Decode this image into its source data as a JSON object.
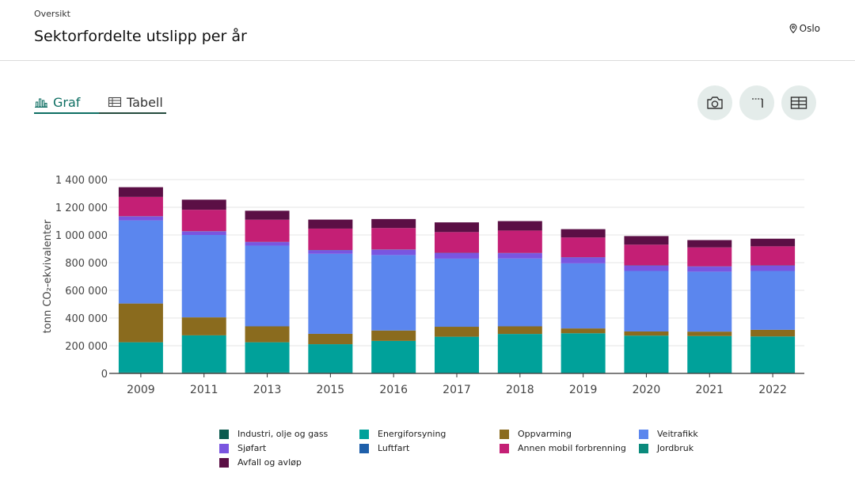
{
  "header": {
    "breadcrumb": "Oversikt",
    "title": "Sektorfordelte utslipp per år",
    "location": "Oslo"
  },
  "tabs": [
    {
      "label": "Graf",
      "icon": "bar-chart-icon",
      "active": true
    },
    {
      "label": "Tabell",
      "icon": "table-icon",
      "active": false
    }
  ],
  "toolbar": [
    {
      "name": "download-image-button",
      "icon": "camera-icon"
    },
    {
      "name": "toggle-axis-button",
      "icon": "axis-icon"
    },
    {
      "name": "show-table-button",
      "icon": "grid-icon"
    }
  ],
  "chart_data": {
    "type": "bar",
    "stacked": true,
    "categories": [
      "2009",
      "2011",
      "2013",
      "2015",
      "2016",
      "2017",
      "2018",
      "2019",
      "2020",
      "2021",
      "2022"
    ],
    "ylabel": "tonn CO₂-ekvivalenter",
    "ylim": [
      0,
      1400000
    ],
    "yticks": [
      0,
      200000,
      400000,
      600000,
      800000,
      1000000,
      1200000,
      1400000
    ],
    "ytick_labels": [
      "0",
      "200 000",
      "400 000",
      "600 000",
      "800 000",
      "1 000 000",
      "1 200 000",
      "1 400 000"
    ],
    "grid": true,
    "legend_position": "bottom",
    "series": [
      {
        "name": "Industri, olje og gass",
        "color": "#0b5a4e",
        "values": [
          5000,
          5000,
          5000,
          4000,
          3000,
          3000,
          3000,
          3000,
          3000,
          3000,
          3000
        ]
      },
      {
        "name": "Jordbruk",
        "color": "#0a8a7c",
        "values": [
          2000,
          2000,
          2000,
          2000,
          2000,
          2000,
          2000,
          2000,
          2000,
          2000,
          2000
        ]
      },
      {
        "name": "Energiforsyning",
        "color": "#00a19a",
        "values": [
          218000,
          268000,
          218000,
          205000,
          230000,
          260000,
          280000,
          285000,
          268000,
          265000,
          262000
        ]
      },
      {
        "name": "Oppvarming",
        "color": "#8a6b1e",
        "values": [
          280000,
          130000,
          115000,
          75000,
          75000,
          72000,
          55000,
          35000,
          30000,
          32000,
          48000
        ]
      },
      {
        "name": "Veitrafikk",
        "color": "#5b86ee",
        "values": [
          600000,
          595000,
          583000,
          578000,
          545000,
          492000,
          490000,
          470000,
          437000,
          433000,
          425000
        ]
      },
      {
        "name": "Sjøfart",
        "color": "#7a55e0",
        "values": [
          28000,
          25000,
          25000,
          25000,
          38000,
          40000,
          38000,
          42000,
          38000,
          36000,
          38000
        ]
      },
      {
        "name": "Luftfart",
        "color": "#1e5faa",
        "values": [
          2000,
          2000,
          2000,
          2000,
          2000,
          2000,
          2000,
          2000,
          2000,
          2000,
          2000
        ]
      },
      {
        "name": "Annen mobil forbrenning",
        "color": "#c41f75",
        "values": [
          140000,
          155000,
          160000,
          155000,
          155000,
          150000,
          162000,
          143000,
          150000,
          137000,
          138000
        ]
      },
      {
        "name": "Avfall og avløp",
        "color": "#5b0f45",
        "values": [
          70000,
          73000,
          65000,
          65000,
          65000,
          70000,
          68000,
          60000,
          62000,
          53000,
          55000
        ]
      }
    ]
  },
  "legend_order": [
    "Industri, olje og gass",
    "Energiforsyning",
    "Oppvarming",
    "Veitrafikk",
    "Sjøfart",
    "Luftfart",
    "Annen mobil forbrenning",
    "Jordbruk",
    "Avfall og avløp"
  ]
}
